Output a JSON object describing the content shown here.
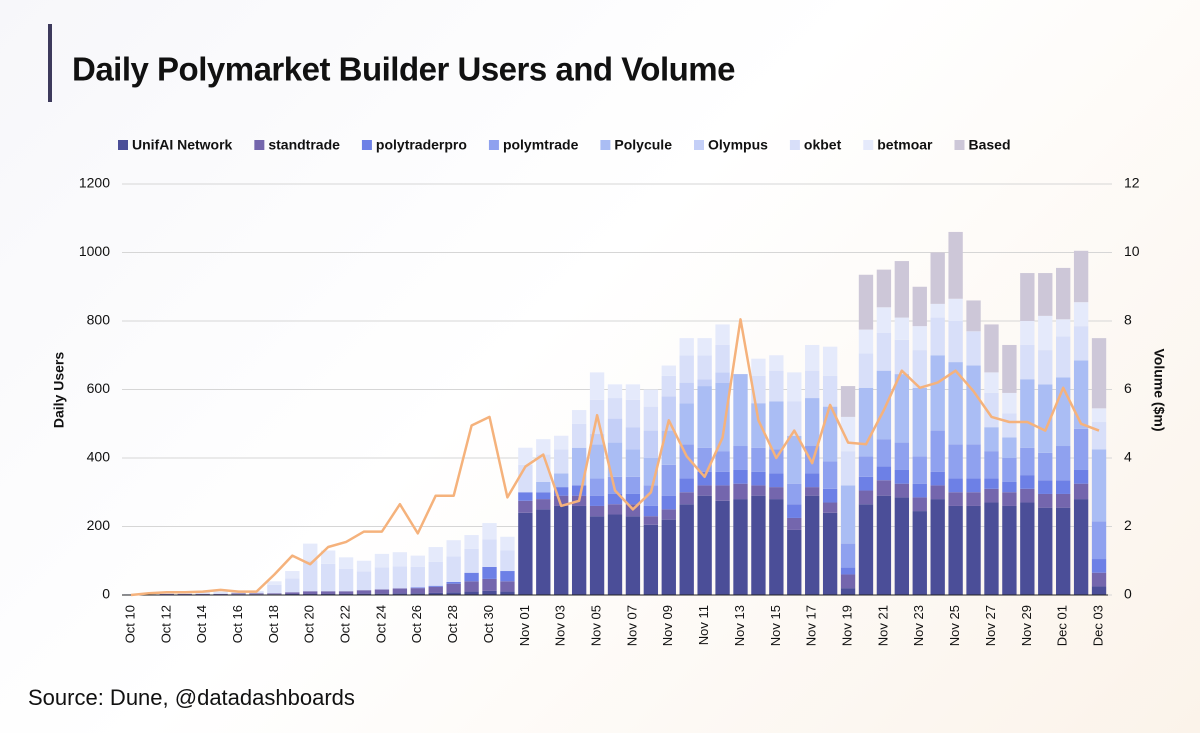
{
  "chart_data": {
    "type": "bar",
    "stacked": true,
    "title": "Daily Polymarket Builder Users and Volume",
    "source": "Source: Dune, @datadashboards",
    "ylabel": "Daily Users",
    "y2label": "Volume ($m)",
    "ylim": [
      0,
      1200
    ],
    "yticks": [
      0,
      200,
      400,
      600,
      800,
      1000,
      1200
    ],
    "y2lim": [
      0,
      12
    ],
    "y2ticks": [
      0,
      2,
      4,
      6,
      8,
      10,
      12
    ],
    "grid": true,
    "categories": [
      "Oct 10",
      null,
      "Oct 12",
      null,
      "Oct 14",
      null,
      "Oct 16",
      null,
      "Oct 18",
      null,
      "Oct 20",
      null,
      "Oct 22",
      null,
      "Oct 24",
      null,
      "Oct 26",
      null,
      "Oct 28",
      null,
      "Oct 30",
      null,
      "Nov 01",
      null,
      "Nov 03",
      null,
      "Nov 05",
      null,
      "Nov 07",
      null,
      "Nov 09",
      null,
      "Nov 11",
      null,
      "Nov 13",
      null,
      "Nov 15",
      null,
      "Nov 17",
      null,
      "Nov 19",
      null,
      "Nov 21",
      null,
      "Nov 23",
      null,
      "Nov 25",
      null,
      "Nov 27",
      null,
      "Nov 29",
      null,
      "Dec 01",
      null,
      "Dec 03"
    ],
    "series": [
      {
        "name": "UnifAI Network",
        "color": "#4b4e98",
        "values": [
          0,
          0,
          1,
          1,
          1,
          1,
          2,
          2,
          2,
          3,
          3,
          3,
          3,
          4,
          4,
          5,
          5,
          6,
          8,
          10,
          12,
          10,
          240,
          250,
          260,
          260,
          230,
          235,
          230,
          205,
          220,
          265,
          290,
          275,
          280,
          290,
          280,
          190,
          290,
          240,
          20,
          265,
          290,
          285,
          245,
          280,
          260,
          260,
          270,
          260,
          270,
          255,
          255,
          280,
          25
        ]
      },
      {
        "name": "standtrade",
        "color": "#7466ad",
        "values": [
          0,
          1,
          2,
          2,
          2,
          2,
          3,
          3,
          3,
          5,
          8,
          8,
          8,
          10,
          12,
          14,
          15,
          18,
          25,
          30,
          35,
          30,
          35,
          30,
          30,
          30,
          30,
          30,
          35,
          25,
          30,
          35,
          30,
          45,
          45,
          30,
          35,
          35,
          25,
          30,
          40,
          40,
          45,
          40,
          40,
          40,
          40,
          40,
          40,
          40,
          40,
          40,
          40,
          45,
          40
        ]
      },
      {
        "name": "polytraderpro",
        "color": "#6d80e6",
        "values": [
          0,
          0,
          0,
          0,
          0,
          0,
          0,
          0,
          0,
          0,
          0,
          0,
          0,
          0,
          0,
          0,
          2,
          3,
          5,
          25,
          35,
          30,
          25,
          20,
          25,
          30,
          30,
          30,
          30,
          30,
          40,
          40,
          40,
          40,
          40,
          40,
          40,
          40,
          40,
          40,
          20,
          40,
          40,
          40,
          40,
          40,
          40,
          40,
          30,
          30,
          40,
          40,
          40,
          40,
          40
        ]
      },
      {
        "name": "polymtrade",
        "color": "#8fa1ef",
        "values": [
          0,
          0,
          0,
          0,
          0,
          0,
          0,
          0,
          0,
          0,
          0,
          0,
          0,
          0,
          0,
          0,
          0,
          0,
          0,
          0,
          0,
          0,
          0,
          0,
          0,
          0,
          50,
          50,
          50,
          60,
          90,
          100,
          70,
          60,
          70,
          70,
          70,
          60,
          80,
          80,
          70,
          60,
          80,
          80,
          80,
          120,
          100,
          100,
          80,
          70,
          80,
          80,
          100,
          120,
          110
        ]
      },
      {
        "name": "Polycule",
        "color": "#aabdf4",
        "values": [
          0,
          0,
          0,
          0,
          0,
          0,
          0,
          0,
          0,
          0,
          0,
          0,
          0,
          0,
          0,
          0,
          0,
          0,
          0,
          0,
          0,
          0,
          0,
          30,
          40,
          110,
          100,
          100,
          80,
          80,
          100,
          120,
          180,
          200,
          210,
          130,
          140,
          140,
          140,
          160,
          170,
          200,
          200,
          200,
          200,
          220,
          240,
          230,
          70,
          60,
          200,
          200,
          200,
          200,
          210
        ]
      },
      {
        "name": "Olympus",
        "color": "#c4cff7",
        "values": [
          0,
          0,
          0,
          0,
          0,
          0,
          0,
          0,
          0,
          0,
          0,
          0,
          0,
          0,
          0,
          0,
          0,
          0,
          0,
          0,
          0,
          0,
          0,
          0,
          0,
          0,
          30,
          70,
          65,
          80,
          100,
          60,
          20,
          30,
          0,
          0,
          0,
          0,
          0,
          0,
          0,
          0,
          0,
          0,
          0,
          0,
          0,
          0,
          0,
          0,
          0,
          0,
          0,
          0,
          0
        ]
      },
      {
        "name": "okbet",
        "color": "#d8dff9",
        "values": [
          2,
          3,
          5,
          5,
          5,
          5,
          5,
          5,
          25,
          40,
          90,
          80,
          65,
          55,
          65,
          65,
          60,
          70,
          75,
          70,
          80,
          60,
          80,
          80,
          70,
          70,
          100,
          60,
          80,
          70,
          60,
          80,
          70,
          80,
          0,
          80,
          90,
          100,
          80,
          90,
          100,
          100,
          110,
          100,
          110,
          110,
          120,
          100,
          100,
          70,
          100,
          100,
          120,
          100,
          80
        ]
      },
      {
        "name": "betmoar",
        "color": "#e5eafb",
        "values": [
          1,
          1,
          2,
          2,
          2,
          2,
          2,
          2,
          10,
          22,
          49,
          39,
          34,
          31,
          39,
          41,
          33,
          43,
          47,
          40,
          48,
          40,
          50,
          45,
          40,
          40,
          80,
          40,
          45,
          50,
          30,
          50,
          50,
          60,
          0,
          50,
          45,
          85,
          75,
          85,
          100,
          70,
          75,
          65,
          70,
          40,
          65,
          0,
          60,
          60,
          70,
          100,
          50,
          70,
          40
        ]
      },
      {
        "name": "Based",
        "color": "#cdc7d8",
        "values": [
          0,
          0,
          0,
          0,
          0,
          0,
          0,
          0,
          0,
          0,
          0,
          0,
          0,
          0,
          0,
          0,
          0,
          0,
          0,
          0,
          0,
          0,
          0,
          0,
          0,
          0,
          0,
          0,
          0,
          0,
          0,
          0,
          0,
          0,
          0,
          0,
          0,
          0,
          0,
          0,
          90,
          160,
          110,
          165,
          115,
          150,
          195,
          90,
          140,
          140,
          140,
          125,
          150,
          150,
          205
        ]
      }
    ],
    "line": {
      "axis": "y2",
      "color": "#f5b27c",
      "values": [
        0,
        0.05,
        0.08,
        0.08,
        0.1,
        0.15,
        0.1,
        0.1,
        0.6,
        1.15,
        0.9,
        1.4,
        1.55,
        1.85,
        1.85,
        2.65,
        1.8,
        2.9,
        2.9,
        4.95,
        5.2,
        2.85,
        3.75,
        4.1,
        2.6,
        2.75,
        5.25,
        3.05,
        2.5,
        3.0,
        5.1,
        4.05,
        3.45,
        4.6,
        8.05,
        5.1,
        4.0,
        4.8,
        3.85,
        5.55,
        4.45,
        4.4,
        5.4,
        6.55,
        6.05,
        6.2,
        6.55,
        5.95,
        5.2,
        5.05,
        5.05,
        4.8,
        6.05,
        5.0,
        4.8
      ]
    }
  }
}
